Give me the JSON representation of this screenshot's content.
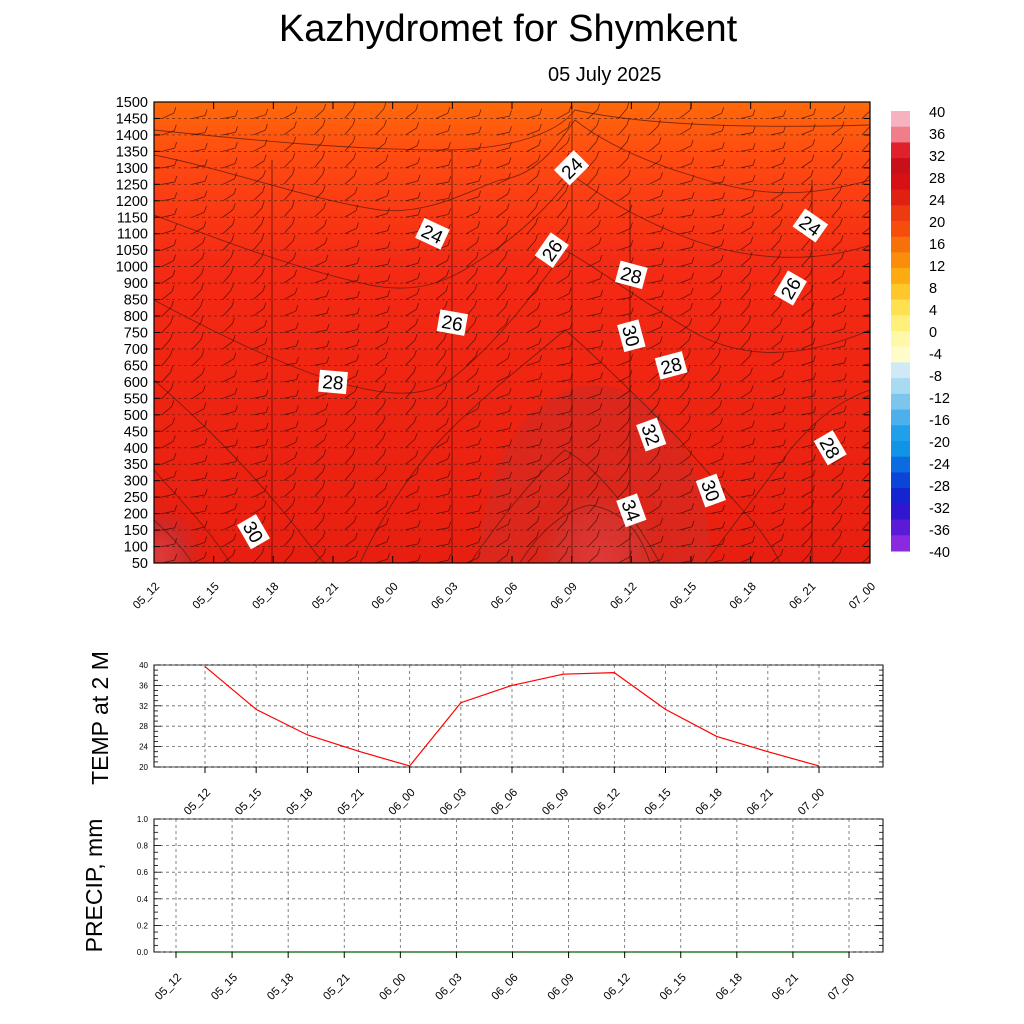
{
  "header": {
    "title": "Kazhydromet  for Shymkent",
    "subtitle": "05 July 2025"
  },
  "colors": {
    "line": "#ff0000",
    "grid": "#444444",
    "contour": "#4a1010"
  },
  "chart_data": [
    {
      "type": "heatmap",
      "name": "temperature-wind-cross-section",
      "x_ticks": [
        "05_12",
        "05_15",
        "05_18",
        "05_21",
        "06_00",
        "06_03",
        "06_06",
        "06_09",
        "06_12",
        "06_15",
        "06_18",
        "06_21",
        "07_00"
      ],
      "y_ticks": [
        "1500",
        "1450",
        "1400",
        "1350",
        "1300",
        "1250",
        "1200",
        "1150",
        "1100",
        "1050",
        "1000",
        "900",
        "850",
        "800",
        "750",
        "700",
        "650",
        "600",
        "550",
        "500",
        "450",
        "400",
        "350",
        "300",
        "250",
        "200",
        "150",
        "100",
        "50"
      ],
      "colorbar": {
        "ticks": [
          "40",
          "36",
          "32",
          "28",
          "24",
          "20",
          "16",
          "12",
          "8",
          "4",
          "0",
          "-4",
          "-8",
          "-12",
          "-16",
          "-20",
          "-24",
          "-28",
          "-32",
          "-36",
          "-40"
        ],
        "range": [
          -40,
          40
        ]
      },
      "contour_labels": [
        {
          "text": "24",
          "x": "06_09",
          "y": 1300
        },
        {
          "text": "24",
          "x": "06_02",
          "y": 1100
        },
        {
          "text": "24",
          "x": "06_21",
          "y": 1125
        },
        {
          "text": "26",
          "x": "06_08",
          "y": 1050
        },
        {
          "text": "26",
          "x": "06_03",
          "y": 780
        },
        {
          "text": "26",
          "x": "06_20",
          "y": 885
        },
        {
          "text": "28",
          "x": "06_12",
          "y": 950
        },
        {
          "text": "28",
          "x": "05_21",
          "y": 600
        },
        {
          "text": "28",
          "x": "06_14",
          "y": 650
        },
        {
          "text": "28",
          "x": "06_22",
          "y": 400
        },
        {
          "text": "30",
          "x": "06_12",
          "y": 740
        },
        {
          "text": "30",
          "x": "06_16",
          "y": 270
        },
        {
          "text": "30",
          "x": "05_17",
          "y": 145
        },
        {
          "text": "32",
          "x": "06_13",
          "y": 440
        },
        {
          "text": "34",
          "x": "06_12",
          "y": 210
        }
      ]
    },
    {
      "type": "line",
      "name": "temp-2m",
      "ylabel": "TEMP at 2 M",
      "ylim": [
        20,
        40
      ],
      "y_ticks": [
        "40",
        "36",
        "32",
        "28",
        "24",
        "20"
      ],
      "categories": [
        "05_12",
        "05_15",
        "05_18",
        "05_21",
        "06_00",
        "06_03",
        "06_06",
        "06_09",
        "06_12",
        "06_15",
        "06_18",
        "06_21",
        "07_00"
      ],
      "values": [
        39.7,
        31.3,
        26.3,
        23.1,
        20.2,
        32.6,
        36.0,
        38.2,
        38.5,
        31.3,
        26.0,
        23.0,
        20.2
      ]
    },
    {
      "type": "line",
      "name": "precip",
      "ylabel": "PRECIP, mm",
      "ylim": [
        0,
        1
      ],
      "y_ticks": [
        "1.0",
        "0.8",
        "0.6",
        "0.4",
        "0.2",
        "0.0"
      ],
      "categories": [
        "05_12",
        "05_15",
        "05_18",
        "05_21",
        "06_00",
        "06_03",
        "06_06",
        "06_09",
        "06_12",
        "06_15",
        "06_18",
        "06_21",
        "07_00"
      ],
      "values": [
        0,
        0,
        0,
        0,
        0,
        0,
        0,
        0,
        0,
        0,
        0,
        0,
        0
      ]
    }
  ]
}
